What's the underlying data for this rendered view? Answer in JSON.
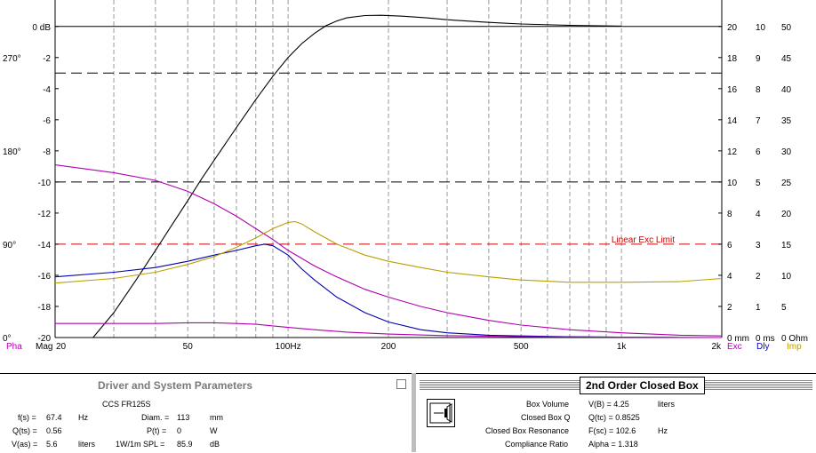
{
  "chart_data": {
    "type": "line",
    "xscale": "log",
    "xlim": [
      20,
      2000
    ],
    "x_ticks": [
      {
        "value": 20,
        "label": "20"
      },
      {
        "value": 50,
        "label": "50"
      },
      {
        "value": 100,
        "label": "100Hz"
      },
      {
        "value": 200,
        "label": "200"
      },
      {
        "value": 500,
        "label": "500"
      },
      {
        "value": 1000,
        "label": "1k"
      },
      {
        "value": 2000,
        "label": "2k"
      }
    ],
    "ylim": [
      -20,
      1.7
    ],
    "mag_ticks": [
      {
        "value": 0,
        "label": "0 dB"
      },
      {
        "value": -2,
        "label": "-2"
      },
      {
        "value": -4,
        "label": "-4"
      },
      {
        "value": -6,
        "label": "-6"
      },
      {
        "value": -8,
        "label": "-8"
      },
      {
        "value": -10,
        "label": "-10"
      },
      {
        "value": -12,
        "label": "-12"
      },
      {
        "value": -14,
        "label": "-14"
      },
      {
        "value": -16,
        "label": "-16"
      },
      {
        "value": -18,
        "label": "-18"
      },
      {
        "value": -20,
        "label": "-20"
      }
    ],
    "phase_ticks": [
      {
        "value": -2,
        "label": "270°"
      },
      {
        "value": -8,
        "label": "180°"
      },
      {
        "value": -14,
        "label": "90°"
      },
      {
        "value": -20,
        "label": "0°"
      }
    ],
    "right_axes": {
      "exc": {
        "labels": [
          "20",
          "18",
          "16",
          "14",
          "12",
          "10",
          "8",
          "6",
          "4",
          "2",
          "0 mm"
        ],
        "color": "#000000"
      },
      "dly": {
        "labels": [
          "10",
          "9",
          "8",
          "7",
          "6",
          "5",
          "4",
          "3",
          "2",
          "1",
          "0 ms"
        ],
        "color": "#000000"
      },
      "imp": {
        "labels": [
          "50",
          "45",
          "40",
          "35",
          "30",
          "25",
          "20",
          "15",
          "10",
          "5",
          "0 Ohm"
        ],
        "color": "#000000"
      }
    },
    "bottom_labels": {
      "pha": "Pha",
      "mag": "Mag",
      "exc": "Exc",
      "dly": "Dly",
      "imp": "Imp"
    },
    "axis_label_colors": {
      "pha": "#b000b0",
      "exc": "#b000b0",
      "dly": "#0000b0",
      "imp": "#b8a000"
    },
    "reference_lines": [
      {
        "y": -3,
        "style": "dashed",
        "color": "#000000"
      },
      {
        "y": -10,
        "style": "dashed",
        "color": "#000000"
      },
      {
        "y": -14,
        "style": "dashed",
        "color": "#cc0000",
        "label": "Linear Exc Limit",
        "label_color": "#cc0000"
      }
    ],
    "series": [
      {
        "key": "magnitude",
        "color": "#000000",
        "x": [
          26,
          30,
          35,
          40,
          45,
          50,
          55,
          60,
          70,
          80,
          90,
          100,
          110,
          120,
          130,
          140,
          150,
          170,
          190,
          220,
          260,
          300,
          400,
          500,
          700,
          1000
        ],
        "y": [
          -20,
          -18.4,
          -16.3,
          -14.4,
          -12.7,
          -11.2,
          -9.8,
          -8.6,
          -6.5,
          -4.7,
          -3.2,
          -2.0,
          -1.1,
          -0.45,
          0.05,
          0.35,
          0.55,
          0.7,
          0.72,
          0.66,
          0.55,
          0.43,
          0.26,
          0.16,
          0.07,
          0.02
        ]
      },
      {
        "key": "phase",
        "color": "#b000b0",
        "x": [
          20,
          30,
          40,
          50,
          60,
          70,
          80,
          90,
          100,
          120,
          140,
          170,
          200,
          250,
          300,
          400,
          500,
          700,
          1000,
          1500,
          2000
        ],
        "y": [
          -8.9,
          -9.4,
          -9.9,
          -10.6,
          -11.4,
          -12.2,
          -13.0,
          -13.7,
          -14.4,
          -15.4,
          -16.1,
          -16.9,
          -17.4,
          -18.0,
          -18.4,
          -18.9,
          -19.2,
          -19.5,
          -19.7,
          -19.85,
          -19.9
        ]
      },
      {
        "key": "delay",
        "color": "#0000b0",
        "x": [
          20,
          30,
          40,
          50,
          60,
          70,
          80,
          85,
          90,
          100,
          110,
          120,
          140,
          170,
          200,
          250,
          300,
          400,
          500,
          700,
          1000,
          1500
        ],
        "y": [
          -16.1,
          -15.8,
          -15.5,
          -15.1,
          -14.7,
          -14.4,
          -14.1,
          -14.0,
          -14.1,
          -14.7,
          -15.6,
          -16.3,
          -17.4,
          -18.4,
          -19.0,
          -19.5,
          -19.7,
          -19.85,
          -19.9,
          -19.95,
          -19.98,
          -20.0
        ]
      },
      {
        "key": "impedance",
        "color": "#b8a000",
        "x": [
          20,
          30,
          40,
          50,
          60,
          70,
          80,
          90,
          100,
          105,
          110,
          120,
          140,
          170,
          200,
          250,
          300,
          400,
          500,
          700,
          1000,
          1500,
          2000
        ],
        "y": [
          -16.5,
          -16.2,
          -15.8,
          -15.3,
          -14.8,
          -14.2,
          -13.6,
          -13.0,
          -12.6,
          -12.55,
          -12.7,
          -13.2,
          -14.0,
          -14.7,
          -15.1,
          -15.5,
          -15.8,
          -16.1,
          -16.3,
          -16.45,
          -16.45,
          -16.4,
          -16.2
        ]
      },
      {
        "key": "excursion",
        "color": "#b000b0",
        "x": [
          20,
          30,
          40,
          50,
          60,
          70,
          80,
          90,
          100,
          120,
          150,
          200,
          300,
          500,
          1000,
          2000
        ],
        "y": [
          -19.1,
          -19.1,
          -19.1,
          -19.05,
          -19.05,
          -19.1,
          -19.15,
          -19.25,
          -19.35,
          -19.5,
          -19.65,
          -19.78,
          -19.88,
          -19.95,
          -19.98,
          -20.0
        ]
      }
    ]
  },
  "driver_panel": {
    "title": "Driver and System Parameters",
    "driver": "CCS  FR125S",
    "col1": [
      {
        "label": "f(s) =",
        "value": "67.4",
        "unit": "Hz"
      },
      {
        "label": "Q(ts) =",
        "value": "0.56",
        "unit": ""
      },
      {
        "label": "V(as) =",
        "value": "5.6",
        "unit": "liters"
      }
    ],
    "col2": [
      {
        "label": "Diam. =",
        "value": "113",
        "unit": "mm"
      },
      {
        "label": "P(t) =",
        "value": "0",
        "unit": "W"
      },
      {
        "label": "1W/1m SPL =",
        "value": "85.9",
        "unit": "dB"
      }
    ]
  },
  "box_panel": {
    "title": "2nd Order Closed Box",
    "rows": [
      {
        "label": "Box Volume",
        "value": "V(B) = 4.25",
        "unit": "liters"
      },
      {
        "label": "Closed Box Q",
        "value": "Q(tc) = 0.8525",
        "unit": ""
      },
      {
        "label": "Closed Box Resonance",
        "value": "F(sc) = 102.6",
        "unit": "Hz"
      },
      {
        "label": "Compliance Ratio",
        "value": "Alpha = 1.318",
        "unit": ""
      }
    ]
  }
}
